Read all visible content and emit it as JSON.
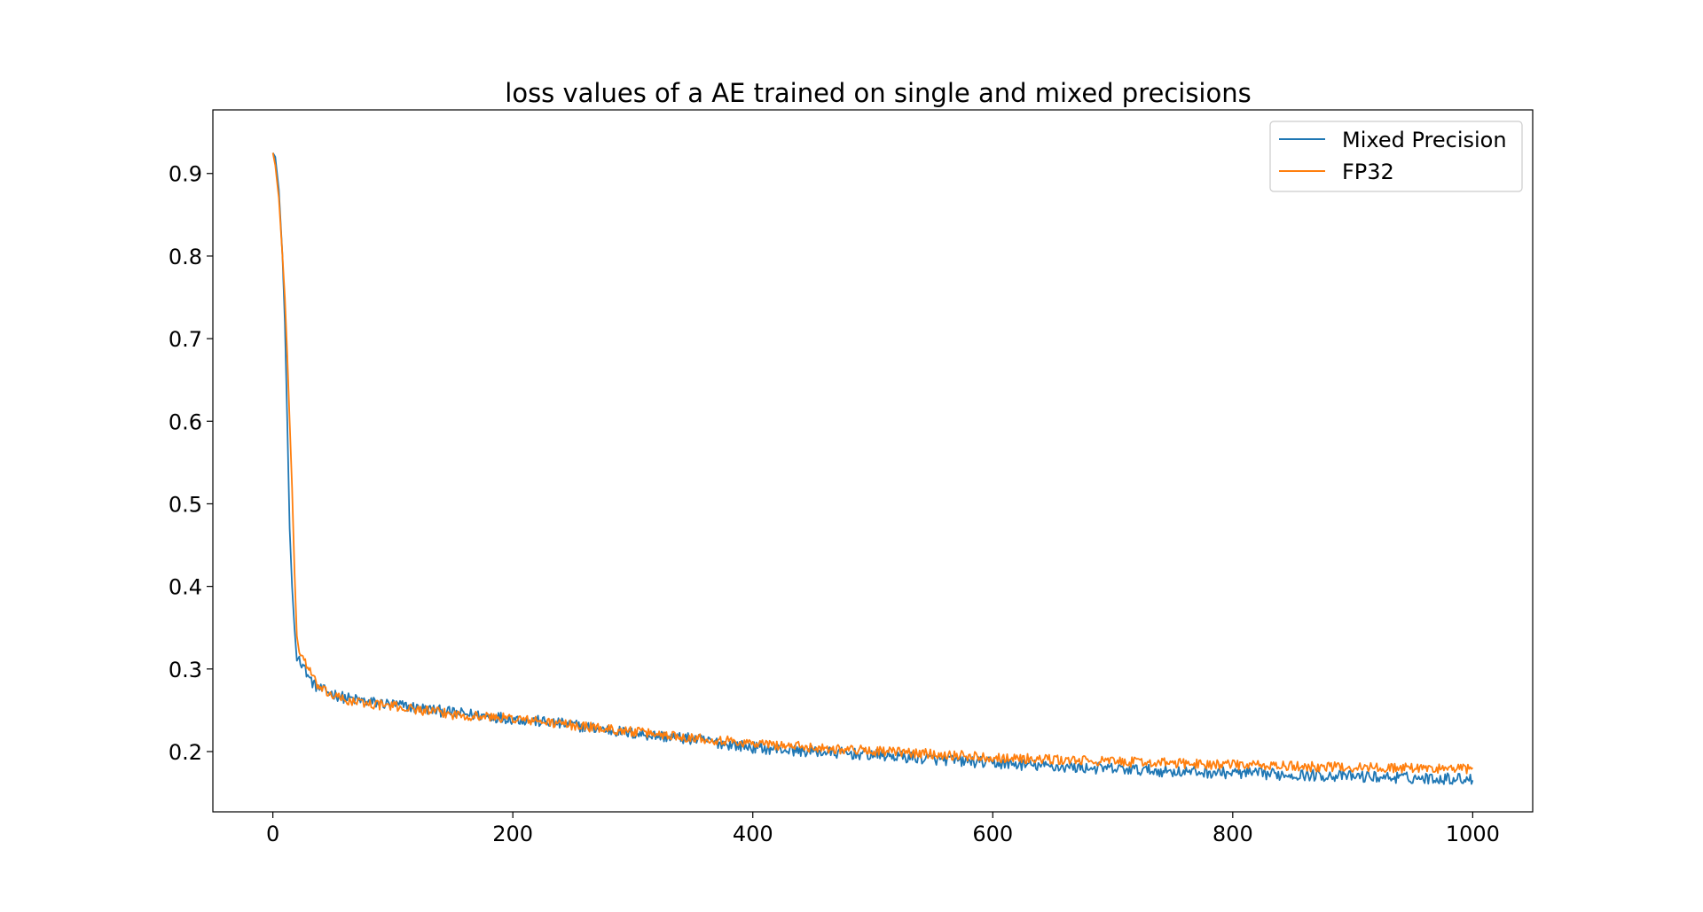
{
  "chart_data": {
    "type": "line",
    "title": "loss values of a AE trained on single and mixed precisions",
    "xlabel": "",
    "ylabel": "",
    "xlim": [
      -50,
      1050
    ],
    "ylim": [
      0.127,
      0.977
    ],
    "xticks": [
      0,
      200,
      400,
      600,
      800,
      1000
    ],
    "xtick_labels": [
      "0",
      "200",
      "400",
      "600",
      "800",
      "1000"
    ],
    "yticks": [
      0.2,
      0.3,
      0.4,
      0.5,
      0.6,
      0.7,
      0.8,
      0.9
    ],
    "ytick_labels": [
      "0.2",
      "0.3",
      "0.4",
      "0.5",
      "0.6",
      "0.7",
      "0.8",
      "0.9"
    ],
    "grid": false,
    "legend_position": "top-right",
    "series": [
      {
        "name": "Mixed Precision",
        "color": "#1f77b4",
        "x": [
          0,
          2,
          5,
          8,
          10,
          12,
          14,
          16,
          18,
          20,
          22,
          25,
          30,
          35,
          40,
          50,
          60,
          80,
          100,
          120,
          150,
          200,
          250,
          300,
          350,
          400,
          450,
          500,
          550,
          600,
          650,
          700,
          750,
          800,
          850,
          900,
          950,
          1000
        ],
        "y": [
          0.925,
          0.92,
          0.88,
          0.8,
          0.72,
          0.6,
          0.47,
          0.4,
          0.35,
          0.31,
          0.315,
          0.305,
          0.29,
          0.28,
          0.275,
          0.27,
          0.265,
          0.26,
          0.257,
          0.253,
          0.247,
          0.24,
          0.232,
          0.222,
          0.215,
          0.205,
          0.2,
          0.196,
          0.191,
          0.186,
          0.182,
          0.179,
          0.176,
          0.174,
          0.172,
          0.17,
          0.168,
          0.167
        ],
        "noise": 0.007
      },
      {
        "name": "FP32",
        "color": "#ff7f0e",
        "x": [
          0,
          2,
          5,
          8,
          10,
          12,
          14,
          16,
          18,
          20,
          22,
          25,
          30,
          35,
          40,
          50,
          60,
          80,
          100,
          120,
          150,
          200,
          250,
          300,
          350,
          400,
          450,
          500,
          550,
          600,
          650,
          700,
          750,
          800,
          850,
          900,
          950,
          1000
        ],
        "y": [
          0.925,
          0.91,
          0.87,
          0.8,
          0.75,
          0.68,
          0.6,
          0.52,
          0.42,
          0.34,
          0.32,
          0.315,
          0.3,
          0.285,
          0.275,
          0.268,
          0.262,
          0.258,
          0.255,
          0.251,
          0.245,
          0.24,
          0.232,
          0.224,
          0.217,
          0.21,
          0.205,
          0.201,
          0.197,
          0.193,
          0.19,
          0.188,
          0.186,
          0.184,
          0.182,
          0.181,
          0.18,
          0.179
        ],
        "noise": 0.006
      }
    ]
  }
}
